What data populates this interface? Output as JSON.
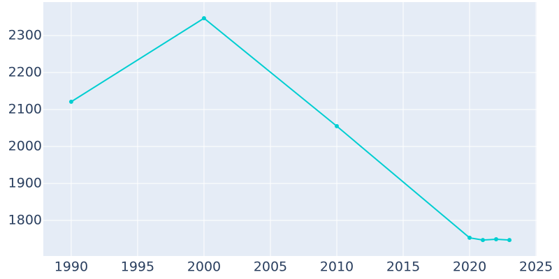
{
  "chart_data": {
    "type": "line",
    "x": [
      1990,
      2000,
      2010,
      2020,
      2021,
      2022,
      2023
    ],
    "series": [
      {
        "color": "#00ced1",
        "values": [
          2121,
          2347,
          2055,
          1753,
          1747,
          1749,
          1747
        ]
      }
    ],
    "xlim": [
      1987.9,
      2025.05
    ],
    "xticks": [
      1990,
      1995,
      2000,
      2005,
      2010,
      2015,
      2020,
      2025
    ],
    "ylim": [
      1703.8,
      2390.6
    ],
    "yticks": [
      1800,
      1900,
      2000,
      2100,
      2200,
      2300
    ],
    "grid": true,
    "plot_background": "#e5ecf6"
  }
}
